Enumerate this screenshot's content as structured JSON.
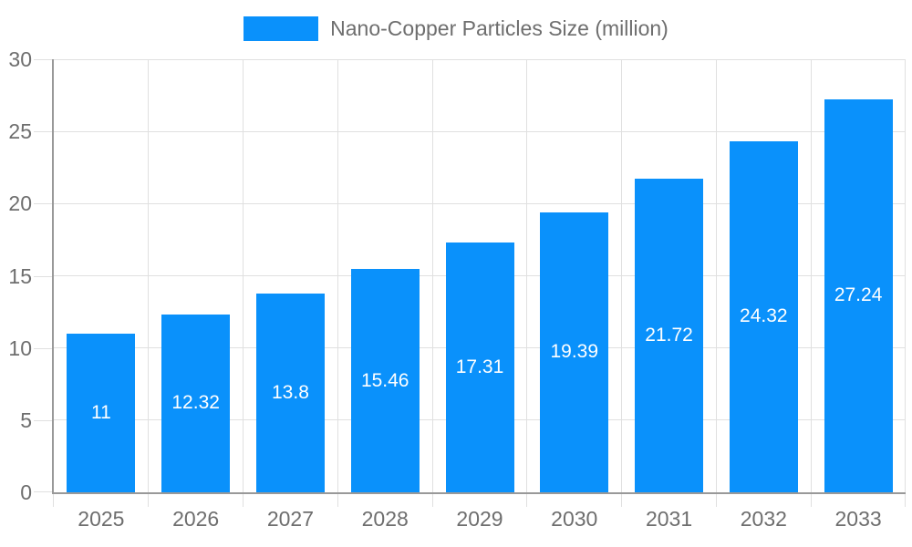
{
  "chart_data": {
    "type": "bar",
    "title": "Nano-Copper Particles Size (million)",
    "categories": [
      "2025",
      "2026",
      "2027",
      "2028",
      "2029",
      "2030",
      "2031",
      "2032",
      "2033"
    ],
    "values": [
      11,
      12.32,
      13.8,
      15.46,
      17.31,
      19.39,
      21.72,
      24.32,
      27.24
    ],
    "value_labels": [
      "11",
      "12.32",
      "13.8",
      "15.46",
      "17.31",
      "19.39",
      "21.72",
      "24.32",
      "27.24"
    ],
    "xlabel": "",
    "ylabel": "",
    "ylim": [
      0,
      30
    ],
    "yticks": [
      0,
      5,
      10,
      15,
      20,
      25,
      30
    ],
    "grid": true,
    "legend_position": "top",
    "legend_entries": [
      "Nano-Copper Particles Size (million)"
    ],
    "colors": {
      "bar": "#0a91fb",
      "axis_line": "#999999",
      "grid_line": "#e0e0e0",
      "axis_label": "#6e6e6e",
      "legend_label": "#6e6e6e",
      "value_label": "#ffffff",
      "background": "#ffffff"
    }
  }
}
